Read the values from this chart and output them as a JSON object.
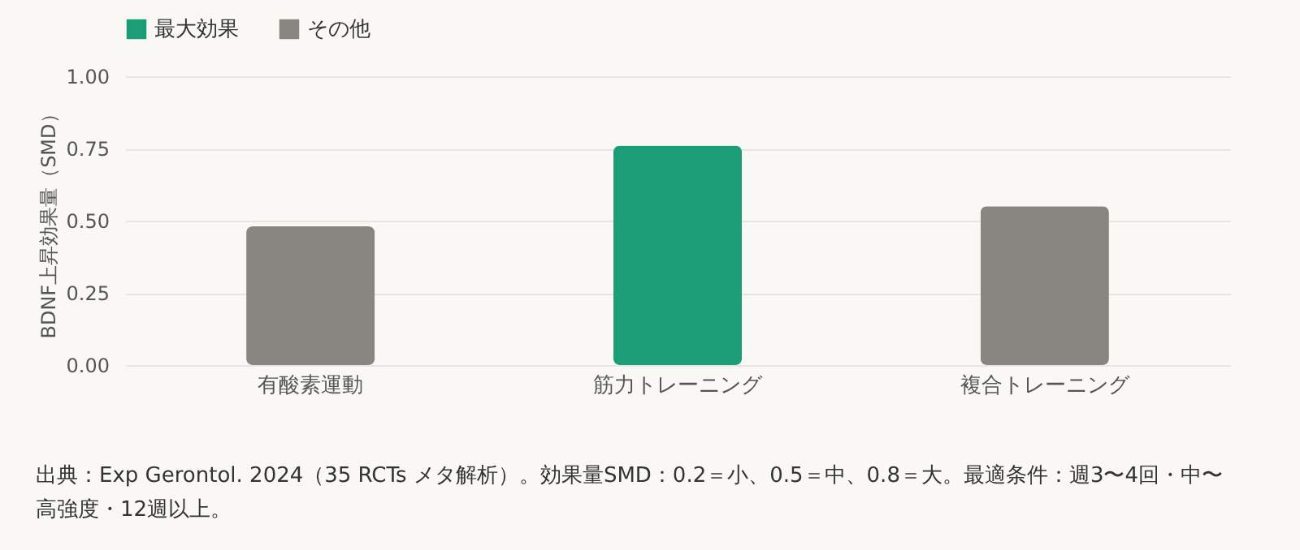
{
  "chart_data": {
    "type": "bar",
    "ylabel": "BDNF上昇効果量（SMD）",
    "categories": [
      "有酸素運動",
      "筋力トレーニング",
      "複合トレーニング"
    ],
    "series": [
      {
        "name": "最大効果",
        "color": "#1b9e77",
        "values": [
          null,
          0.76,
          null
        ]
      },
      {
        "name": "その他",
        "color": "#878680",
        "values": [
          0.48,
          null,
          0.55
        ]
      }
    ],
    "stacked": true,
    "ylim": [
      0,
      1
    ],
    "yticks": [
      {
        "value": 0,
        "label": "0.00"
      },
      {
        "value": 0.25,
        "label": "0.25"
      },
      {
        "value": 0.5,
        "label": "0.50"
      },
      {
        "value": 0.75,
        "label": "0.75"
      },
      {
        "value": 1,
        "label": "1.00"
      }
    ],
    "grid": "y",
    "legend": "top left",
    "annotations": [
      "出典：Exp Gerontol. 2024（35 RCTs メタ解析）。効果量SMD：0.2＝小、0.5＝中、0.8＝大。最適条件：週3〜4回・中〜高強度・12週以上。"
    ]
  }
}
